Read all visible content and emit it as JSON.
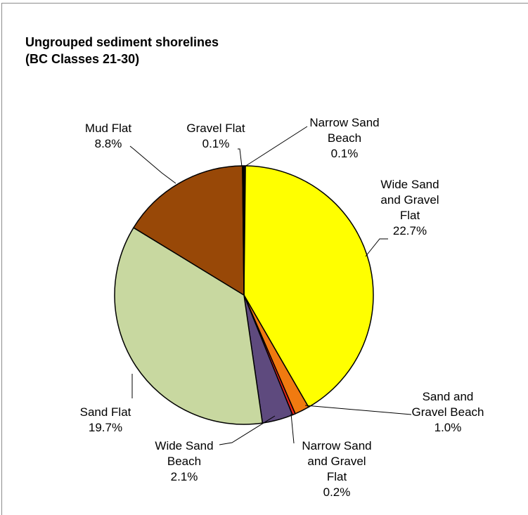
{
  "chart_data": {
    "type": "pie",
    "title_lines": [
      "Ungrouped sediment shorelines",
      "(BC Classes 21-30)"
    ],
    "slices": [
      {
        "name": "Narrow Sand Beach",
        "label_lines": [
          "Narrow Sand",
          "Beach"
        ],
        "value": 0.1,
        "value_label": "0.1%",
        "color": "#2b2b2b"
      },
      {
        "name": "Wide Sand and Gravel Flat",
        "label_lines": [
          "Wide Sand",
          "and Gravel",
          "Flat"
        ],
        "value": 22.7,
        "value_label": "22.7%",
        "color": "#ffff00"
      },
      {
        "name": "Sand and Gravel Beach",
        "label_lines": [
          "Sand and",
          "Gravel Beach"
        ],
        "value": 1.0,
        "value_label": "1.0%",
        "color": "#f07a10"
      },
      {
        "name": "Narrow Sand and Gravel Flat",
        "label_lines": [
          "Narrow Sand",
          "and Gravel",
          "Flat"
        ],
        "value": 0.2,
        "value_label": "0.2%",
        "color": "#e8251a"
      },
      {
        "name": "Wide Sand Beach",
        "label_lines": [
          "Wide Sand",
          "Beach"
        ],
        "value": 2.1,
        "value_label": "2.1%",
        "color": "#5e4a7e"
      },
      {
        "name": "Sand Flat",
        "label_lines": [
          "Sand Flat"
        ],
        "value": 19.7,
        "value_label": "19.7%",
        "color": "#c8d8a0"
      },
      {
        "name": "Mud Flat",
        "label_lines": [
          "Mud Flat"
        ],
        "value": 8.8,
        "value_label": "8.8%",
        "color": "#984807"
      },
      {
        "name": "Gravel Flat",
        "label_lines": [
          "Gravel Flat"
        ],
        "value": 0.1,
        "value_label": "0.1%",
        "color": "#000000"
      }
    ]
  }
}
